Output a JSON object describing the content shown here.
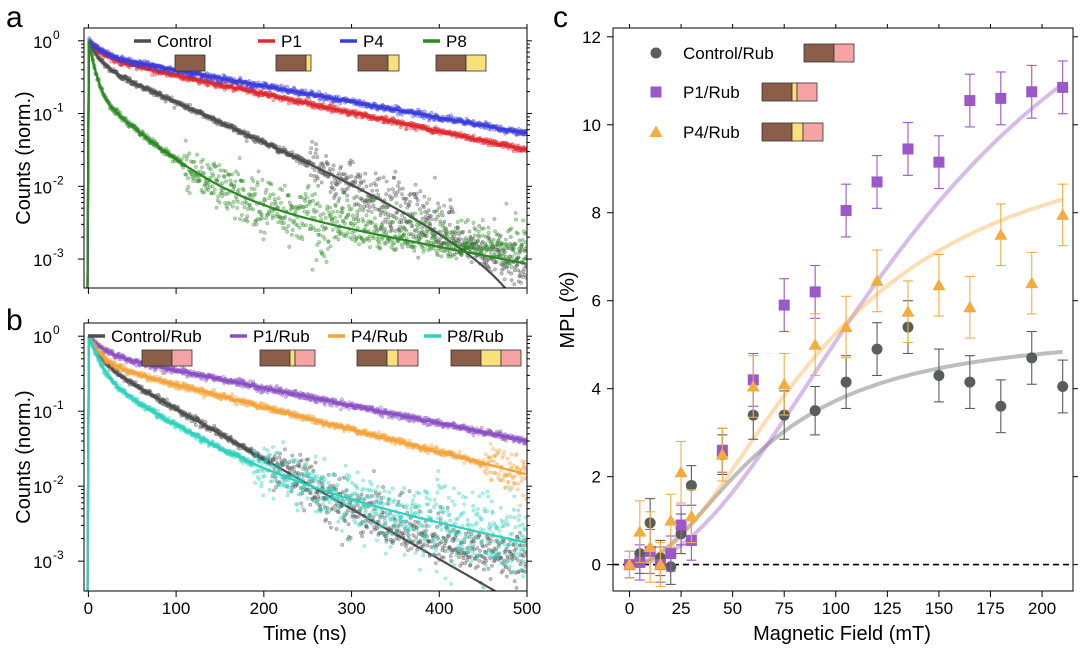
{
  "panels": {
    "a": {
      "letter": "a"
    },
    "b": {
      "letter": "b"
    },
    "c": {
      "letter": "c"
    }
  },
  "colors": {
    "control": "#4d4d4d",
    "p1": "#e0282e",
    "p4": "#3b3bdc",
    "p8": "#2a8a23",
    "p1rub": "#8b4fc4",
    "p4rub": "#f4a33a",
    "p8rub": "#2ed1be",
    "mpl_control": "#5a5e5a",
    "mpl_p1": "#9a58c8",
    "mpl_p4": "#f4ac40",
    "layer_brown": "#8b5e4a",
    "layer_yellow": "#f9e07a",
    "layer_pink": "#f7a3a3"
  },
  "chart_data": [
    {
      "id": "a",
      "type": "scatter",
      "xlabel": "",
      "ylabel": "Counts (norm.)",
      "yscale": "log",
      "xlim": [
        -5,
        500
      ],
      "ylim": [
        0.0004,
        1.5
      ],
      "xticks": [
        0,
        100,
        200,
        300,
        400,
        500
      ],
      "yticks": [
        {
          "v": 1,
          "label": "10",
          "exp": "0"
        },
        {
          "v": 0.1,
          "label": "10",
          "exp": "-1"
        },
        {
          "v": 0.01,
          "label": "10",
          "exp": "-2"
        },
        {
          "v": 0.001,
          "label": "10",
          "exp": "-3"
        }
      ],
      "series": [
        {
          "key": "control",
          "name": "Control",
          "layers": [
            "brown"
          ],
          "model": {
            "a1": 0.5,
            "t1": 10,
            "a2": 0.5,
            "t2": 80,
            "cutoff": 520,
            "noise_floor": 0.0015
          }
        },
        {
          "key": "p1",
          "name": "P1",
          "layers": [
            "brown",
            "yellow-thin"
          ],
          "model": {
            "a1": 0.4,
            "t1": 15,
            "a2": 0.6,
            "t2": 170,
            "noise_floor": 0.0
          }
        },
        {
          "key": "p4",
          "name": "P4",
          "layers": [
            "brown",
            "yellow"
          ],
          "model": {
            "a1": 0.35,
            "t1": 15,
            "a2": 0.65,
            "t2": 200,
            "noise_floor": 0.0
          }
        },
        {
          "key": "p8",
          "name": "P8",
          "layers": [
            "brown",
            "yellow-wide"
          ],
          "model": {
            "a1": 0.8,
            "t1": 6,
            "a2": 0.2,
            "t2": 40,
            "a3": 0.012,
            "t3": 190,
            "noise_floor": 0.0015
          }
        }
      ]
    },
    {
      "id": "b",
      "type": "scatter",
      "xlabel": "Time (ns)",
      "ylabel": "Counts (norm.)",
      "yscale": "log",
      "xlim": [
        -5,
        500
      ],
      "ylim": [
        0.0004,
        1.5
      ],
      "xticks": [
        0,
        100,
        200,
        300,
        400,
        500
      ],
      "yticks": [
        {
          "v": 1,
          "label": "10",
          "exp": "0"
        },
        {
          "v": 0.1,
          "label": "10",
          "exp": "-1"
        },
        {
          "v": 0.01,
          "label": "10",
          "exp": "-2"
        },
        {
          "v": 0.001,
          "label": "10",
          "exp": "-3"
        }
      ],
      "series": [
        {
          "key": "control",
          "name": "Control/Rub",
          "layers": [
            "brown",
            "pink"
          ],
          "model": {
            "a1": 0.5,
            "t1": 10,
            "a2": 0.5,
            "t2": 65,
            "noise_floor": 0.002
          }
        },
        {
          "key": "p1rub",
          "name": "P1/Rub",
          "layers": [
            "brown",
            "yellow-thin",
            "pink"
          ],
          "model": {
            "a1": 0.4,
            "t1": 15,
            "a2": 0.6,
            "t2": 185,
            "noise_floor": 0.0
          }
        },
        {
          "key": "p4rub",
          "name": "P4/Rub",
          "layers": [
            "brown",
            "yellow",
            "pink"
          ],
          "model": {
            "a1": 0.55,
            "t1": 12,
            "a2": 0.45,
            "t2": 145,
            "noise_floor": 0.0
          }
        },
        {
          "key": "p8rub",
          "name": "P8/Rub",
          "layers": [
            "brown",
            "yellow-wide",
            "pink"
          ],
          "model": {
            "a1": 0.7,
            "t1": 10,
            "a2": 0.3,
            "t2": 55,
            "a3": 0.03,
            "t3": 175,
            "noise_floor": 0.0
          }
        }
      ]
    },
    {
      "id": "c",
      "type": "scatter",
      "xlabel": "Magnetic Field (mT)",
      "ylabel": "MPL (%)",
      "xlim": [
        -8,
        215
      ],
      "ylim": [
        -0.6,
        12.2
      ],
      "xticks": [
        0,
        25,
        50,
        75,
        100,
        125,
        150,
        175,
        200
      ],
      "yticks": [
        0,
        2,
        4,
        6,
        8,
        10,
        12
      ],
      "zero_line": true,
      "series": [
        {
          "key": "mpl_control",
          "name": "Control/Rub",
          "marker": "circle",
          "layers": [
            "brown",
            "pink"
          ],
          "x": [
            0,
            5,
            10,
            15,
            20,
            25,
            30,
            45,
            60,
            75,
            90,
            105,
            120,
            135,
            150,
            165,
            180,
            195,
            210
          ],
          "y": [
            0,
            0.25,
            0.95,
            0.15,
            -0.05,
            0.7,
            1.8,
            2.5,
            3.4,
            3.4,
            3.5,
            4.15,
            4.9,
            5.4,
            4.3,
            4.15,
            3.6,
            4.7,
            4.05
          ],
          "err": [
            0.3,
            0.45,
            0.55,
            0.4,
            0.4,
            0.45,
            0.45,
            0.45,
            0.55,
            0.55,
            0.55,
            0.6,
            0.6,
            0.6,
            0.6,
            0.6,
            0.6,
            0.6,
            0.6
          ],
          "fit": {
            "A": 5.3,
            "B0": 65
          }
        },
        {
          "key": "mpl_p1",
          "name": "P1/Rub",
          "marker": "square",
          "layers": [
            "brown",
            "yellow-thin",
            "pink"
          ],
          "x": [
            0,
            5,
            10,
            15,
            20,
            25,
            30,
            45,
            60,
            75,
            90,
            105,
            120,
            135,
            150,
            165,
            180,
            195,
            210
          ],
          "y": [
            0,
            0.05,
            0.3,
            0.0,
            0.25,
            0.9,
            0.55,
            2.6,
            4.2,
            5.9,
            6.2,
            8.05,
            8.7,
            9.45,
            9.15,
            10.55,
            10.6,
            10.75,
            10.85
          ],
          "err": [
            0.3,
            0.4,
            0.5,
            0.4,
            0.4,
            0.45,
            0.45,
            0.5,
            0.6,
            0.6,
            0.6,
            0.6,
            0.6,
            0.6,
            0.6,
            0.6,
            0.6,
            0.6,
            0.6
          ],
          "fit": {
            "A": 16.5,
            "B0": 150
          }
        },
        {
          "key": "mpl_p4",
          "name": "P4/Rub",
          "marker": "triangle",
          "layers": [
            "brown",
            "yellow",
            "pink"
          ],
          "x": [
            0,
            5,
            10,
            15,
            20,
            25,
            30,
            45,
            60,
            75,
            90,
            105,
            120,
            135,
            150,
            165,
            180,
            195,
            210
          ],
          "y": [
            0,
            0.75,
            0.4,
            0.0,
            1.0,
            2.1,
            1.1,
            2.5,
            4.05,
            4.1,
            5.0,
            5.4,
            6.45,
            5.75,
            6.35,
            5.85,
            7.5,
            6.4,
            7.95
          ],
          "err": [
            0.3,
            0.7,
            0.8,
            0.5,
            0.6,
            0.7,
            0.6,
            0.6,
            0.7,
            0.7,
            0.7,
            0.7,
            0.7,
            0.7,
            0.7,
            0.7,
            0.7,
            0.7,
            0.7
          ],
          "fit": {
            "A": 10.0,
            "B0": 95
          }
        }
      ]
    }
  ]
}
